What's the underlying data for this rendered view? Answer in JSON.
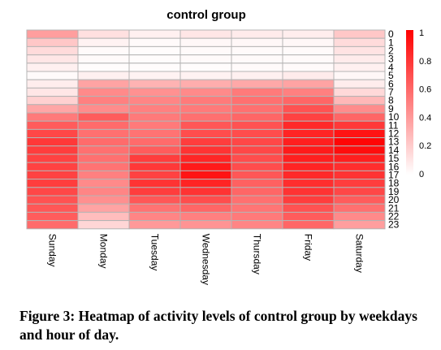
{
  "chart_data": {
    "type": "heatmap",
    "title": "control group",
    "xlabel": "",
    "ylabel": "",
    "columns": [
      "Sunday",
      "Monday",
      "Tuesday",
      "Wednesday",
      "Thursday",
      "Friday",
      "Saturday"
    ],
    "rows": [
      "0",
      "1",
      "2",
      "3",
      "4",
      "5",
      "6",
      "7",
      "8",
      "9",
      "10",
      "11",
      "12",
      "13",
      "14",
      "15",
      "16",
      "17",
      "18",
      "19",
      "20",
      "21",
      "22",
      "23"
    ],
    "values": [
      [
        0.38,
        0.12,
        0.06,
        0.1,
        0.08,
        0.07,
        0.22
      ],
      [
        0.22,
        0.05,
        0.02,
        0.03,
        0.03,
        0.03,
        0.14
      ],
      [
        0.14,
        0.02,
        0.01,
        0.02,
        0.02,
        0.02,
        0.11
      ],
      [
        0.1,
        0.02,
        0.01,
        0.02,
        0.02,
        0.02,
        0.08
      ],
      [
        0.06,
        0.01,
        0.01,
        0.01,
        0.02,
        0.02,
        0.06
      ],
      [
        0.02,
        0.06,
        0.05,
        0.05,
        0.06,
        0.08,
        0.03
      ],
      [
        0.07,
        0.36,
        0.3,
        0.32,
        0.34,
        0.36,
        0.07
      ],
      [
        0.1,
        0.46,
        0.43,
        0.46,
        0.52,
        0.5,
        0.15
      ],
      [
        0.18,
        0.5,
        0.48,
        0.52,
        0.56,
        0.6,
        0.28
      ],
      [
        0.35,
        0.45,
        0.5,
        0.52,
        0.56,
        0.68,
        0.45
      ],
      [
        0.52,
        0.64,
        0.52,
        0.56,
        0.6,
        0.74,
        0.6
      ],
      [
        0.64,
        0.58,
        0.52,
        0.66,
        0.68,
        0.84,
        0.78
      ],
      [
        0.72,
        0.56,
        0.55,
        0.7,
        0.7,
        0.86,
        0.92
      ],
      [
        0.78,
        0.58,
        0.58,
        0.76,
        0.72,
        0.88,
        0.98
      ],
      [
        0.76,
        0.56,
        0.64,
        0.8,
        0.72,
        0.9,
        0.95
      ],
      [
        0.74,
        0.56,
        0.76,
        0.85,
        0.7,
        0.88,
        0.88
      ],
      [
        0.74,
        0.55,
        0.78,
        0.9,
        0.7,
        0.86,
        0.82
      ],
      [
        0.74,
        0.5,
        0.74,
        0.92,
        0.66,
        0.84,
        0.8
      ],
      [
        0.76,
        0.46,
        0.8,
        0.86,
        0.62,
        0.82,
        0.76
      ],
      [
        0.72,
        0.48,
        0.76,
        0.8,
        0.6,
        0.8,
        0.72
      ],
      [
        0.68,
        0.44,
        0.66,
        0.7,
        0.56,
        0.76,
        0.64
      ],
      [
        0.66,
        0.36,
        0.55,
        0.6,
        0.54,
        0.68,
        0.56
      ],
      [
        0.64,
        0.26,
        0.48,
        0.5,
        0.52,
        0.64,
        0.46
      ],
      [
        0.58,
        0.16,
        0.4,
        0.42,
        0.48,
        0.6,
        0.38
      ]
    ],
    "color_scale": {
      "min": 0,
      "max": 1,
      "low_color": "#ffffff",
      "high_color": "#ff0000",
      "ticks": [
        "1",
        "0.8",
        "0.6",
        "0.4",
        "0.2",
        "0"
      ]
    },
    "grid_color": "#b4b4b4",
    "legend_placement": "right"
  },
  "caption": "Figure 3: Heatmap of activity levels of control group by weekdays and hour of day."
}
